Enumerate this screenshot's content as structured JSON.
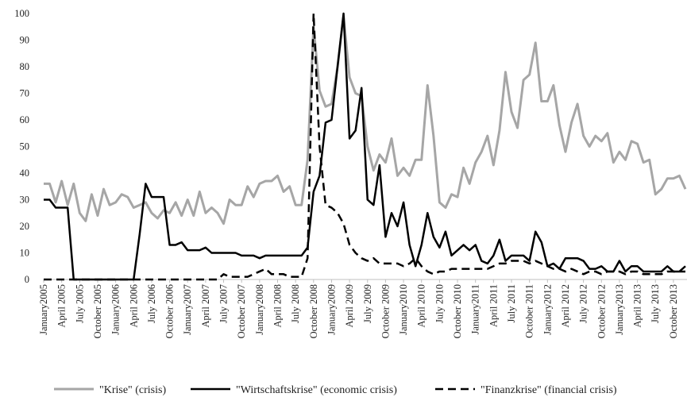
{
  "chart_data": {
    "type": "line",
    "categories": [
      "January2005",
      null,
      null,
      "April 2005",
      null,
      null,
      "July 2005",
      null,
      null,
      "October 2005",
      null,
      null,
      "January2006",
      null,
      null,
      "April 2006",
      null,
      null,
      "July 2006",
      null,
      null,
      "October 2006",
      null,
      null,
      "January2007",
      null,
      null,
      "April 2007",
      null,
      null,
      "July 2007",
      null,
      null,
      "October 2007",
      null,
      null,
      "January2008",
      null,
      null,
      "April 2008",
      null,
      null,
      "July 2008",
      null,
      null,
      "October 2008",
      null,
      null,
      "January2009",
      null,
      null,
      "April 2009",
      null,
      null,
      "July 2009",
      null,
      null,
      "October 2009",
      null,
      null,
      "January2010",
      null,
      null,
      "April 2010",
      null,
      null,
      "July 2010",
      null,
      null,
      "October 2010",
      null,
      null,
      "January2011",
      null,
      null,
      "April 2011",
      null,
      null,
      "July 2011",
      null,
      null,
      "October 2011",
      null,
      null,
      "January2012",
      null,
      null,
      "April 2012",
      null,
      null,
      "July 2012",
      null,
      null,
      "October 2012",
      null,
      null,
      "January2013",
      null,
      null,
      "April 2013",
      null,
      null,
      "July 2013",
      null,
      null,
      "October 2013",
      null,
      null
    ],
    "series": [
      {
        "name": "\"Krise\" (crisis)",
        "color": "#a6a6a6",
        "line_style": "solid",
        "values": [
          36,
          36,
          29,
          37,
          28,
          36,
          25,
          22,
          32,
          24,
          34,
          28,
          29,
          32,
          31,
          27,
          28,
          29,
          25,
          23,
          26,
          25,
          29,
          24,
          30,
          24,
          33,
          25,
          27,
          25,
          21,
          30,
          28,
          28,
          35,
          31,
          36,
          37,
          37,
          39,
          33,
          35,
          28,
          28,
          45,
          95,
          71,
          65,
          66,
          80,
          99,
          76,
          70,
          69,
          50,
          41,
          47,
          44,
          53,
          39,
          42,
          39,
          45,
          45,
          73,
          54,
          29,
          27,
          32,
          31,
          42,
          36,
          44,
          48,
          54,
          43,
          56,
          78,
          63,
          57,
          75,
          77,
          89,
          67,
          67,
          73,
          58,
          48,
          59,
          66,
          54,
          50,
          54,
          52,
          55,
          44,
          48,
          45,
          52,
          51,
          44,
          45,
          32,
          34,
          38,
          38,
          39,
          34
        ]
      },
      {
        "name": "\"Wirtschaftskrise\" (economic crisis)",
        "color": "#000000",
        "line_style": "solid",
        "values": [
          30,
          30,
          27,
          27,
          27,
          0,
          0,
          0,
          0,
          0,
          0,
          0,
          0,
          0,
          0,
          0,
          17,
          36,
          31,
          31,
          31,
          13,
          13,
          14,
          11,
          11,
          11,
          12,
          10,
          10,
          10,
          10,
          10,
          9,
          9,
          9,
          8,
          9,
          9,
          9,
          9,
          9,
          9,
          9,
          12,
          33,
          39,
          59,
          60,
          80,
          100,
          53,
          56,
          72,
          30,
          28,
          43,
          16,
          25,
          20,
          29,
          13,
          5,
          13,
          25,
          16,
          12,
          18,
          9,
          11,
          13,
          11,
          13,
          7,
          6,
          9,
          15,
          7,
          9,
          9,
          9,
          7,
          18,
          14,
          5,
          6,
          4,
          8,
          8,
          8,
          7,
          4,
          4,
          5,
          3,
          3,
          7,
          3,
          5,
          5,
          3,
          3,
          3,
          3,
          5,
          3,
          3,
          5
        ]
      },
      {
        "name": "\"Finanzkrise\" (financial crisis)",
        "color": "#000000",
        "line_style": "dashed",
        "values": [
          0,
          0,
          0,
          0,
          0,
          0,
          0,
          0,
          0,
          0,
          0,
          0,
          0,
          0,
          0,
          0,
          0,
          0,
          0,
          0,
          0,
          0,
          0,
          0,
          0,
          0,
          0,
          0,
          0,
          0,
          2,
          1,
          1,
          1,
          1,
          2,
          3,
          4,
          2,
          2,
          2,
          1,
          1,
          1,
          8,
          100,
          50,
          28,
          27,
          25,
          21,
          13,
          10,
          8,
          7,
          8,
          6,
          6,
          6,
          6,
          5,
          6,
          8,
          5,
          3,
          2,
          3,
          3,
          4,
          4,
          4,
          4,
          4,
          4,
          4,
          5,
          6,
          6,
          7,
          7,
          7,
          6,
          7,
          6,
          5,
          4,
          4,
          3,
          4,
          3,
          2,
          3,
          3,
          2,
          3,
          3,
          3,
          2,
          3,
          3,
          2,
          2,
          2,
          2,
          3,
          3,
          3,
          3
        ]
      }
    ],
    "ylim": [
      0,
      100
    ],
    "yticks": [
      0,
      10,
      20,
      30,
      40,
      50,
      60,
      70,
      80,
      90,
      100
    ],
    "grid": false,
    "legend": "bottom"
  }
}
